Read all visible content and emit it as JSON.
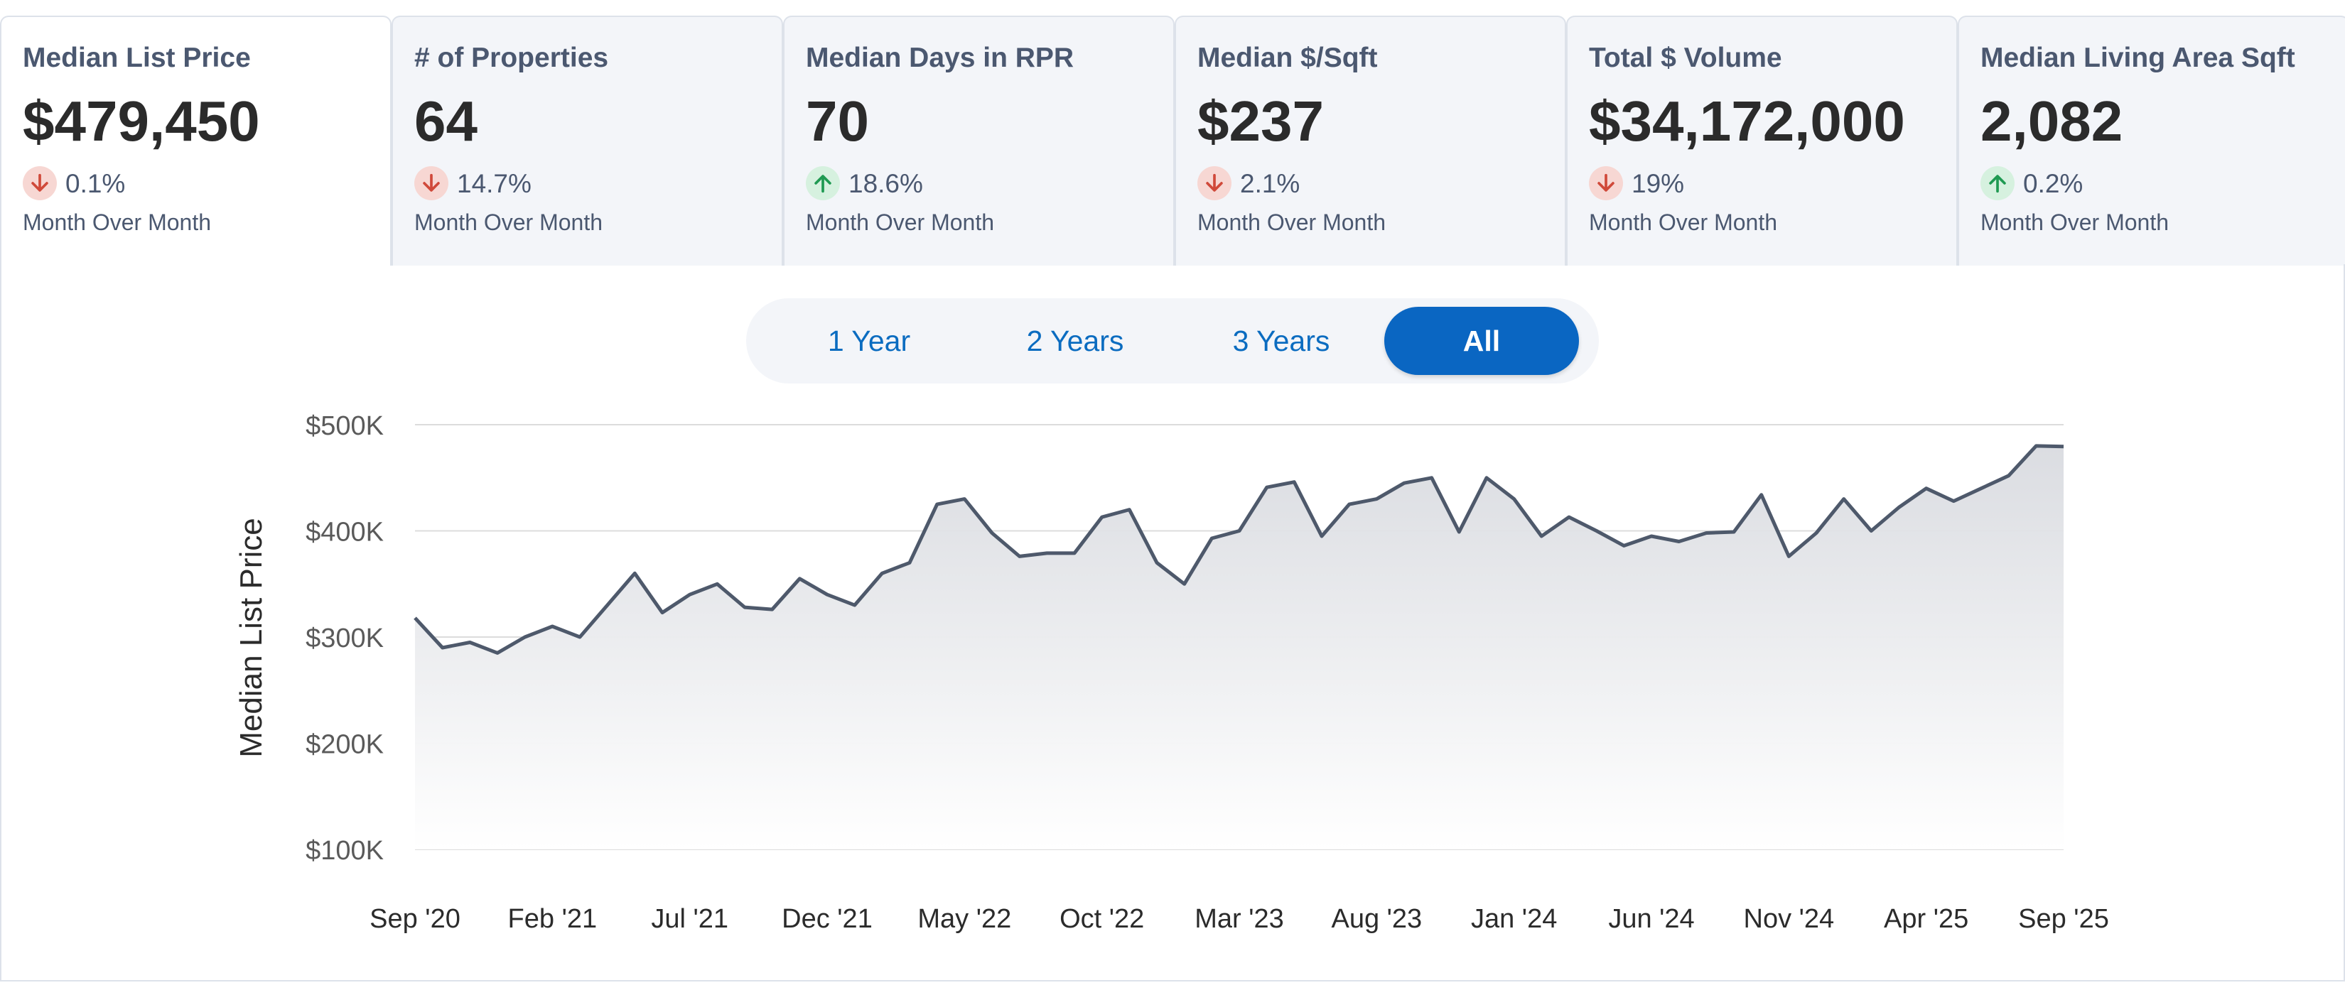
{
  "kpis": [
    {
      "label": "Median List Price",
      "value": "$479,450",
      "direction": "down",
      "change": "0.1%",
      "period": "Month Over Month"
    },
    {
      "label": "# of Properties",
      "value": "64",
      "direction": "down",
      "change": "14.7%",
      "period": "Month Over Month"
    },
    {
      "label": "Median Days in RPR",
      "value": "70",
      "direction": "up",
      "change": "18.6%",
      "period": "Month Over Month"
    },
    {
      "label": "Median $/Sqft",
      "value": "$237",
      "direction": "down",
      "change": "2.1%",
      "period": "Month Over Month"
    },
    {
      "label": "Total $ Volume",
      "value": "$34,172,000",
      "direction": "down",
      "change": "19%",
      "period": "Month Over Month"
    },
    {
      "label": "Median Living Area Sqft",
      "value": "2,082",
      "direction": "up",
      "change": "0.2%",
      "period": "Month Over Month"
    }
  ],
  "range": {
    "options": [
      "1 Year",
      "2 Years",
      "3 Years",
      "All"
    ],
    "selected": "All"
  },
  "colors": {
    "accent": "#0a66c2",
    "down_badge": "#f7d7d3",
    "down_arrow": "#d0493a",
    "up_badge": "#d6f1df",
    "up_arrow": "#1f9a52",
    "line": "#4e596b"
  },
  "icons": {
    "down": "arrow-down-icon",
    "up": "arrow-up-icon"
  },
  "chart_data": {
    "type": "area",
    "ylabel": "Median List Price",
    "ylim": [
      100000,
      500000
    ],
    "yticks": [
      100000,
      200000,
      300000,
      400000,
      500000
    ],
    "ytick_labels": [
      "$100K",
      "$200K",
      "$300K",
      "$400K",
      "$500K"
    ],
    "xtick_labels": [
      "Sep '20",
      "Feb '21",
      "Jul '21",
      "Dec '21",
      "May '22",
      "Oct '22",
      "Mar '23",
      "Aug '23",
      "Jan '24",
      "Jun '24",
      "Nov '24",
      "Apr '25",
      "Sep '25"
    ],
    "grid": true,
    "legend": "none",
    "x": [
      "2020-09",
      "2020-10",
      "2020-11",
      "2020-12",
      "2021-01",
      "2021-02",
      "2021-03",
      "2021-04",
      "2021-05",
      "2021-06",
      "2021-07",
      "2021-08",
      "2021-09",
      "2021-10",
      "2021-11",
      "2021-12",
      "2022-01",
      "2022-02",
      "2022-03",
      "2022-04",
      "2022-05",
      "2022-06",
      "2022-07",
      "2022-08",
      "2022-09",
      "2022-10",
      "2022-11",
      "2022-12",
      "2023-01",
      "2023-02",
      "2023-03",
      "2023-04",
      "2023-05",
      "2023-06",
      "2023-07",
      "2023-08",
      "2023-09",
      "2023-10",
      "2023-11",
      "2023-12",
      "2024-01",
      "2024-02",
      "2024-03",
      "2024-04",
      "2024-05",
      "2024-06",
      "2024-07",
      "2024-08",
      "2024-09",
      "2024-10",
      "2024-11",
      "2024-12",
      "2025-01",
      "2025-02",
      "2025-03",
      "2025-04",
      "2025-05",
      "2025-06",
      "2025-07",
      "2025-08",
      "2025-09"
    ],
    "values": [
      318000,
      290000,
      295000,
      285000,
      300000,
      310000,
      300000,
      330000,
      360000,
      323000,
      340000,
      350000,
      328000,
      326000,
      355000,
      340000,
      330000,
      360000,
      370000,
      425000,
      430000,
      398000,
      376000,
      379000,
      379000,
      413000,
      420000,
      370000,
      350000,
      393000,
      400000,
      441000,
      446000,
      395000,
      425000,
      430000,
      445000,
      450000,
      399000,
      450000,
      430000,
      395000,
      413000,
      400000,
      386000,
      395000,
      390000,
      398000,
      399000,
      434000,
      376000,
      398000,
      430000,
      400000,
      422000,
      440000,
      428000,
      440000,
      452000,
      480000,
      479450
    ]
  }
}
